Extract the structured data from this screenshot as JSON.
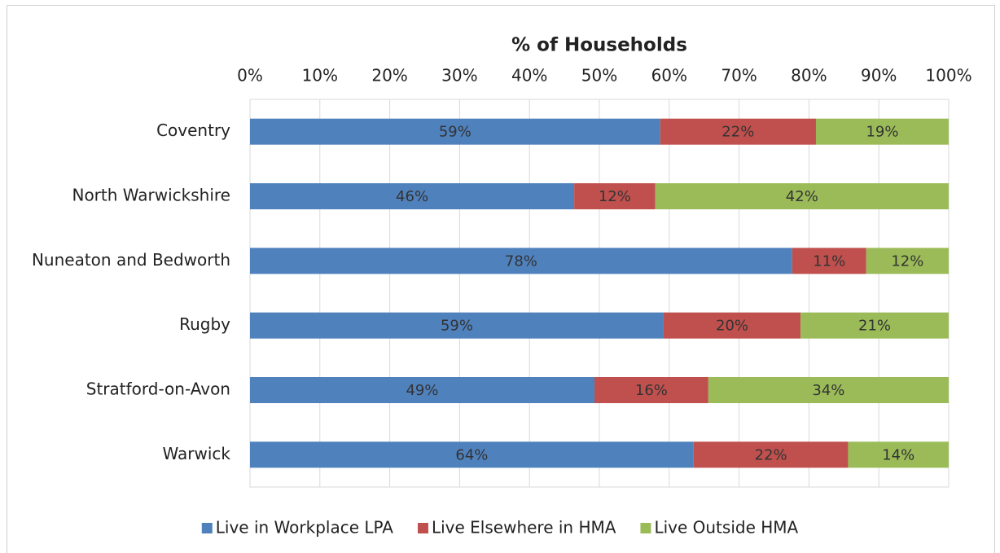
{
  "chart_data": {
    "type": "stacked-barh",
    "title": "% of Households",
    "categories": [
      "Coventry",
      "North Warwickshire",
      "Nuneaton and Bedworth",
      "Rugby",
      "Stratford-on-Avon",
      "Warwick"
    ],
    "series": [
      {
        "name": "Live in Workplace LPA",
        "color": "#4f81bd",
        "values": [
          58.7,
          46.4,
          77.6,
          59.2,
          49.3,
          63.5
        ],
        "value_labels": [
          "59%",
          "46%",
          "78%",
          "59%",
          "49%",
          "64%"
        ]
      },
      {
        "name": "Live Elsewhere in HMA",
        "color": "#c0504d",
        "values": [
          22.3,
          11.6,
          10.6,
          19.6,
          16.3,
          22.1
        ],
        "value_labels": [
          "22%",
          "12%",
          "11%",
          "20%",
          "16%",
          "22%"
        ]
      },
      {
        "name": "Live Outside HMA",
        "color": "#9bbb59",
        "values": [
          19.0,
          42.0,
          11.8,
          21.2,
          34.4,
          14.4
        ],
        "value_labels": [
          "19%",
          "42%",
          "12%",
          "21%",
          "34%",
          "14%"
        ]
      }
    ],
    "xlim": [
      0,
      100
    ],
    "xticks": [
      {
        "value": 0,
        "label": "0%"
      },
      {
        "value": 10,
        "label": "10%"
      },
      {
        "value": 20,
        "label": "20%"
      },
      {
        "value": 30,
        "label": "30%"
      },
      {
        "value": 40,
        "label": "40%"
      },
      {
        "value": 50,
        "label": "50%"
      },
      {
        "value": 60,
        "label": "60%"
      },
      {
        "value": 70,
        "label": "70%"
      },
      {
        "value": 80,
        "label": "80%"
      },
      {
        "value": 90,
        "label": "90%"
      },
      {
        "value": 100,
        "label": "100%"
      }
    ],
    "grid": true,
    "legend": "bottom"
  }
}
